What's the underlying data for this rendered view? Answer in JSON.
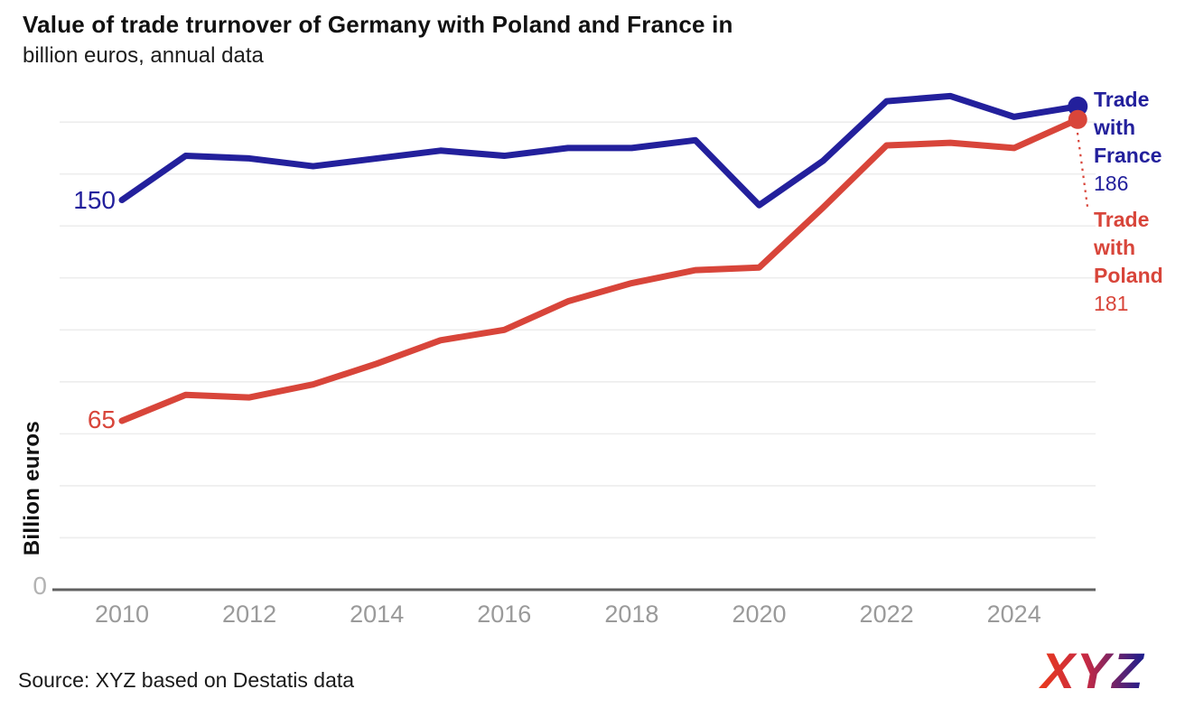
{
  "header": {
    "title_line1": "Value of trade trurnover of Germany with Poland and France in",
    "title_line2": "billion euros, annual data"
  },
  "footer": {
    "source": "Source: XYZ based on Destatis data",
    "logo_text": "XYZ"
  },
  "chart_data": {
    "type": "line",
    "title": "Value of trade trurnover of Germany with Poland and France in billion euros, annual data",
    "xlabel": "",
    "ylabel": "Billion euros",
    "x": [
      2010,
      2011,
      2012,
      2013,
      2014,
      2015,
      2016,
      2017,
      2018,
      2019,
      2020,
      2021,
      2022,
      2023,
      2024,
      2025
    ],
    "x_tick_labels": [
      "2010",
      "2012",
      "2014",
      "2016",
      "2018",
      "2020",
      "2022",
      "2024"
    ],
    "ylim": [
      0,
      195
    ],
    "grid": "horizontal",
    "y_gridlines": [
      20,
      40,
      60,
      80,
      100,
      120,
      140,
      160,
      180
    ],
    "zero_tick_label": "0",
    "legend_position": "right-edge-annotations",
    "series": [
      {
        "name": "Trade with France",
        "color": "#23209c",
        "start_label": "150",
        "end_label": "186",
        "values": [
          150,
          167,
          166,
          163,
          166,
          169,
          167,
          170,
          170,
          173,
          148,
          165,
          188,
          190,
          182,
          186
        ]
      },
      {
        "name": "Trade with Poland",
        "color": "#d8453a",
        "start_label": "65",
        "end_label": "181",
        "values": [
          65,
          75,
          74,
          79,
          87,
          96,
          100,
          111,
          118,
          123,
          124,
          147,
          171,
          172,
          170,
          181
        ]
      }
    ]
  },
  "colors": {
    "france_line": "#23209c",
    "poland_line": "#d8453a",
    "grid_line": "#ededed",
    "axis_line": "#616161",
    "tick_label": "#9a9a9a",
    "title_text": "#111111",
    "logo_gradient": [
      "#ea3a1c",
      "#c62a44",
      "#1a1d8e"
    ]
  }
}
